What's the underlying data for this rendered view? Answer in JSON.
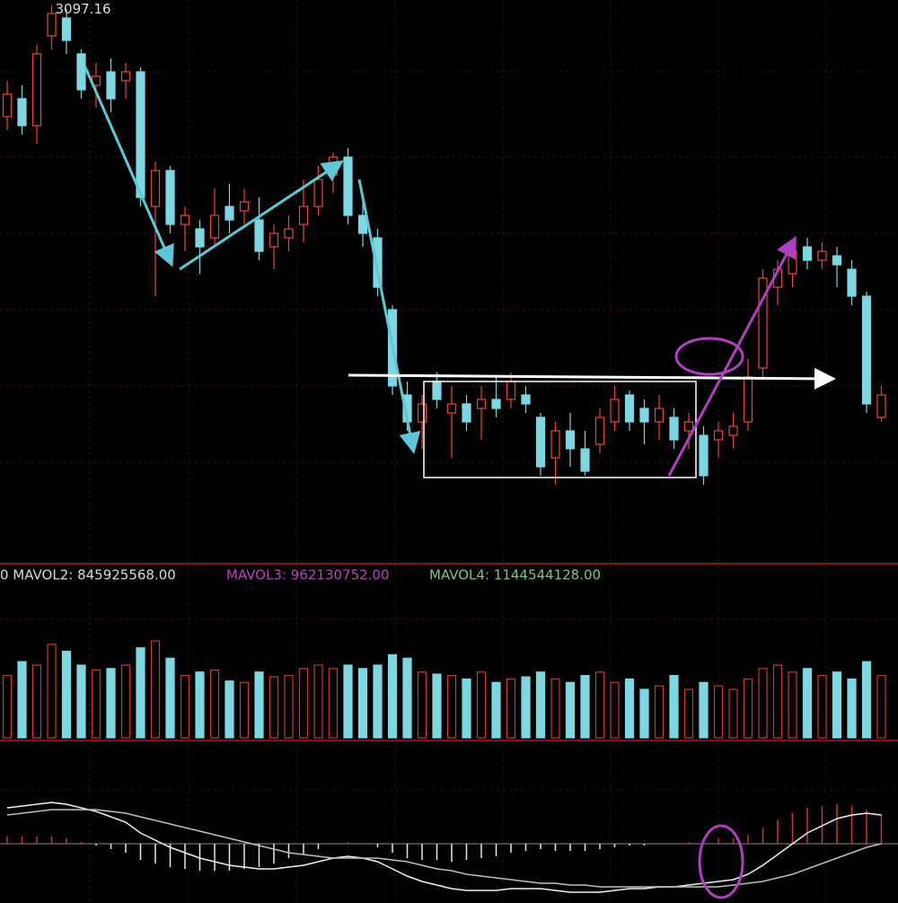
{
  "chart_data": [
    {
      "type": "candlestick",
      "high_label_index": 3,
      "ylim": [
        2800,
        3100
      ],
      "up_color": "#e8453c",
      "down_color": "#7fd6e3",
      "ohlc": [
        [
          3035,
          3055,
          3027.5,
          3047.5
        ],
        [
          3045,
          3052.5,
          3025,
          3030
        ],
        [
          3030,
          3075,
          3020,
          3070
        ],
        [
          3080,
          3097.16,
          3072.5,
          3092.5
        ],
        [
          3090,
          3095,
          3070,
          3077.5
        ],
        [
          3070,
          3072.5,
          3045,
          3050
        ],
        [
          3052.5,
          3065,
          3040,
          3057.5
        ],
        [
          3060,
          3067.5,
          3037.5,
          3045
        ],
        [
          3055,
          3065,
          3045,
          3060
        ],
        [
          3060,
          3062.5,
          2985,
          2990
        ],
        [
          2985,
          3010,
          2935,
          3005
        ],
        [
          3005,
          3007.5,
          2970,
          2975
        ],
        [
          2975,
          2985,
          2960,
          2980
        ],
        [
          2972.5,
          2977.5,
          2947.5,
          2962.5
        ],
        [
          2967.5,
          2995,
          2962.5,
          2980
        ],
        [
          2985,
          2997.5,
          2970,
          2977.5
        ],
        [
          2982.5,
          2995,
          2975,
          2987.5
        ],
        [
          2977.5,
          2990,
          2955,
          2960
        ],
        [
          2962.5,
          2975,
          2950,
          2970
        ],
        [
          2967.5,
          2980,
          2960,
          2972.5
        ],
        [
          2975,
          3000,
          2965,
          2985
        ],
        [
          2985,
          3007.5,
          2980,
          3000
        ],
        [
          3002.5,
          3015,
          2992.5,
          3012.5
        ],
        [
          3012.5,
          3017.5,
          2975,
          2980
        ],
        [
          2980,
          2987.5,
          2962.5,
          2970
        ],
        [
          2967.5,
          2972.5,
          2935,
          2940
        ],
        [
          2927.5,
          2930,
          2880,
          2885
        ],
        [
          2880,
          2887.5,
          2860,
          2865
        ],
        [
          2865,
          2880,
          2850,
          2875
        ],
        [
          2887.5,
          2892.5,
          2872.5,
          2877.5
        ],
        [
          2870,
          2885,
          2845,
          2875
        ],
        [
          2875,
          2880,
          2860,
          2865
        ],
        [
          2872.5,
          2885,
          2855,
          2877.5
        ],
        [
          2877.5,
          2890,
          2867.5,
          2872.5
        ],
        [
          2877.5,
          2892.5,
          2872.5,
          2887.5
        ],
        [
          2880,
          2885,
          2870,
          2875
        ],
        [
          2867.5,
          2870,
          2835,
          2840
        ],
        [
          2845,
          2865,
          2830,
          2860
        ],
        [
          2860,
          2870,
          2840,
          2850
        ],
        [
          2850,
          2860,
          2835,
          2837.5
        ],
        [
          2852.5,
          2872.5,
          2847.5,
          2867.5
        ],
        [
          2865,
          2885,
          2860,
          2877.5
        ],
        [
          2880,
          2882.5,
          2860,
          2865
        ],
        [
          2872.5,
          2877.5,
          2852.5,
          2865
        ],
        [
          2865,
          2880,
          2855,
          2872.5
        ],
        [
          2867.5,
          2872.5,
          2850,
          2855
        ],
        [
          2860,
          2870,
          2850,
          2865
        ],
        [
          2857.5,
          2862.5,
          2830,
          2835
        ],
        [
          2855,
          2865,
          2845,
          2860
        ],
        [
          2857.5,
          2870,
          2850,
          2862.5
        ],
        [
          2865,
          2900,
          2860,
          2890
        ],
        [
          2895,
          2950,
          2890,
          2945
        ],
        [
          2940,
          2955,
          2930,
          2950
        ],
        [
          2947.5,
          2965,
          2940,
          2960
        ],
        [
          2962.5,
          2967.5,
          2950,
          2955
        ],
        [
          2955,
          2965,
          2950,
          2960
        ],
        [
          2957.5,
          2962.5,
          2940,
          2952.5
        ],
        [
          2950,
          2955,
          2930,
          2935
        ],
        [
          2935,
          2937.5,
          2870,
          2875
        ],
        [
          2867.5,
          2885,
          2865,
          2880
        ]
      ]
    },
    {
      "type": "volume",
      "ylim": [
        0,
        2100000000
      ],
      "up_color": "#c9392f",
      "down_color": "#7fd6e3",
      "legend": [
        "0 MAVOL2: 845925568.00",
        "MAVOL3: 962130752.00",
        "MAVOL4: 1144544128.00"
      ],
      "values": [
        900000000,
        1100000000,
        1050000000,
        1350000000,
        1250000000,
        1050000000,
        980000000,
        1000000000,
        1050000000,
        1300000000,
        1400000000,
        1150000000,
        900000000,
        950000000,
        980000000,
        820000000,
        800000000,
        950000000,
        880000000,
        900000000,
        1000000000,
        1050000000,
        1000000000,
        1050000000,
        1000000000,
        1050000000,
        1200000000,
        1150000000,
        950000000,
        920000000,
        900000000,
        850000000,
        950000000,
        800000000,
        850000000,
        880000000,
        950000000,
        850000000,
        800000000,
        900000000,
        950000000,
        800000000,
        850000000,
        700000000,
        750000000,
        900000000,
        700000000,
        800000000,
        750000000,
        700000000,
        850000000,
        1000000000,
        1050000000,
        950000000,
        1000000000,
        900000000,
        950000000,
        850000000,
        1100000000,
        900000000
      ]
    },
    {
      "type": "macd",
      "ylim": [
        -30,
        30
      ],
      "up_color": "#c9392f",
      "down_color": "#e8e8e8",
      "values": [
        4,
        4,
        4,
        4,
        3,
        1,
        -1,
        -3,
        -5,
        -9,
        -11,
        -13,
        -14,
        -15,
        -15,
        -15,
        -14,
        -13,
        -11,
        -8,
        -6,
        -3,
        0,
        1,
        0,
        -2,
        -5,
        -8,
        -9,
        -9,
        -10,
        -9,
        -8,
        -7,
        -5,
        -4,
        -3,
        -4,
        -4,
        -4,
        -3,
        -2,
        -1,
        -1,
        0,
        0,
        1,
        2,
        3,
        3,
        5,
        9,
        13,
        17,
        20,
        21,
        22,
        21,
        19,
        16
      ],
      "series": [
        {
          "color": "#f2f2f2",
          "values": [
            20,
            21,
            22,
            23,
            22,
            20,
            18,
            15,
            12,
            6,
            2,
            -2,
            -5,
            -8,
            -10,
            -12,
            -13,
            -14,
            -14,
            -13,
            -12,
            -10,
            -8,
            -7,
            -8,
            -10,
            -14,
            -18,
            -21,
            -23,
            -25,
            -26,
            -26,
            -26,
            -25,
            -25,
            -25,
            -26,
            -27,
            -27,
            -27,
            -26,
            -25,
            -25,
            -24,
            -24,
            -23,
            -22,
            -21,
            -20,
            -17,
            -12,
            -6,
            0,
            6,
            10,
            14,
            16,
            17,
            16
          ]
        },
        {
          "color": "#bfbfbf",
          "values": [
            16,
            17,
            18,
            19,
            19,
            19,
            19,
            18,
            17,
            15,
            13,
            11,
            9,
            7,
            5,
            3,
            1,
            -1,
            -3,
            -5,
            -6,
            -7,
            -8,
            -8,
            -8,
            -8,
            -9,
            -10,
            -12,
            -14,
            -15,
            -17,
            -18,
            -19,
            -20,
            -21,
            -22,
            -22,
            -23,
            -23,
            -24,
            -24,
            -24,
            -24,
            -24,
            -24,
            -24,
            -24,
            -24,
            -23,
            -22,
            -21,
            -19,
            -17,
            -14,
            -11,
            -8,
            -5,
            -2,
            0
          ]
        }
      ]
    }
  ]
}
